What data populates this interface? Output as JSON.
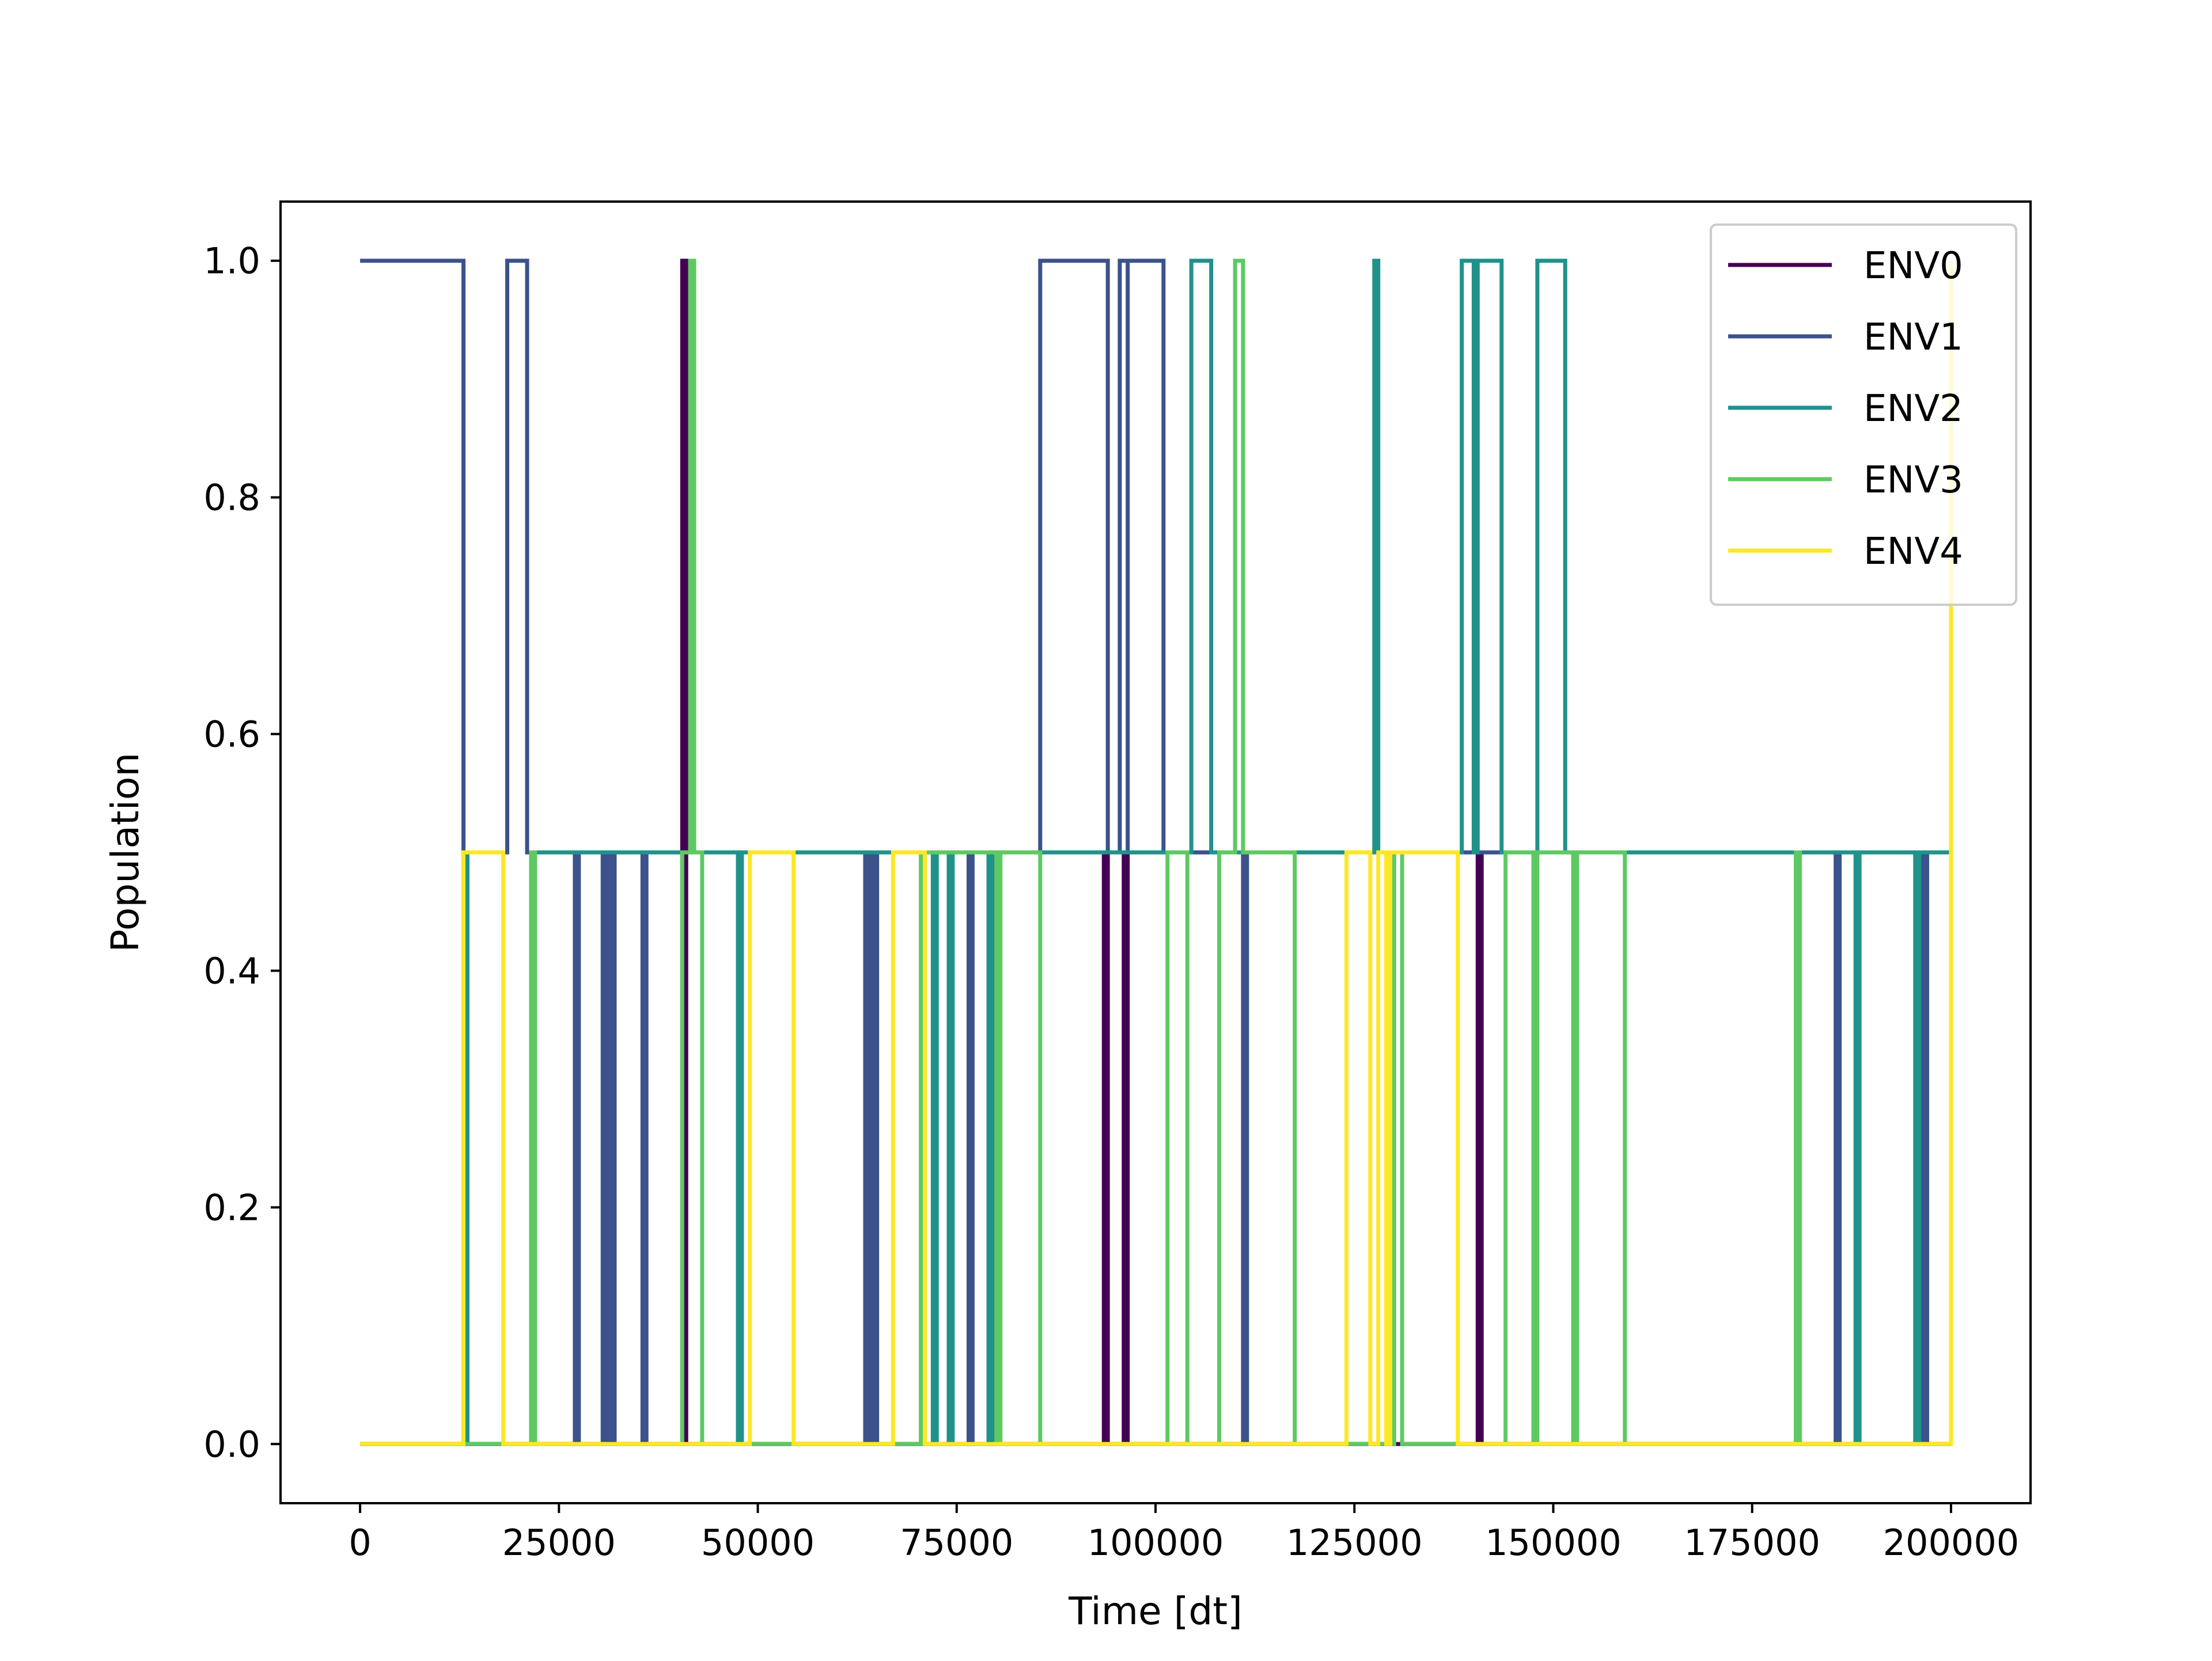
{
  "chart_data": {
    "type": "line",
    "step": true,
    "title": "",
    "xlabel": "Time [dt]",
    "ylabel": "Population",
    "xlim": [
      -10000,
      210000
    ],
    "ylim": [
      -0.05,
      1.05
    ],
    "xticks": [
      0,
      25000,
      50000,
      75000,
      100000,
      125000,
      150000,
      175000,
      200000
    ],
    "xtick_labels": [
      "0",
      "25000",
      "50000",
      "75000",
      "100000",
      "125000",
      "150000",
      "175000",
      "200000"
    ],
    "yticks": [
      0.0,
      0.2,
      0.4,
      0.6,
      0.8,
      1.0
    ],
    "ytick_labels": [
      "0.0",
      "0.2",
      "0.4",
      "0.6",
      "0.8",
      "1.0"
    ],
    "grid": false,
    "legend": {
      "position": "top-right"
    },
    "series": [
      {
        "name": "ENV0",
        "color": "#440154",
        "points": [
          [
            0,
            0
          ],
          [
            40500,
            0
          ],
          [
            40500,
            1.0
          ],
          [
            41000,
            1.0
          ],
          [
            41000,
            0
          ],
          [
            93500,
            0
          ],
          [
            93500,
            0.5
          ],
          [
            94000,
            0.5
          ],
          [
            94000,
            0
          ],
          [
            96000,
            0
          ],
          [
            96000,
            0.5
          ],
          [
            96500,
            0.5
          ],
          [
            96500,
            0
          ],
          [
            140500,
            0
          ],
          [
            140500,
            0.5
          ],
          [
            141000,
            0.5
          ],
          [
            141000,
            0
          ],
          [
            200000,
            0
          ]
        ]
      },
      {
        "name": "ENV1",
        "color": "#3b528b",
        "points": [
          [
            0,
            1.0
          ],
          [
            13000,
            1.0
          ],
          [
            13000,
            0.5
          ],
          [
            18500,
            0.5
          ],
          [
            18500,
            1.0
          ],
          [
            21000,
            1.0
          ],
          [
            21000,
            0.5
          ],
          [
            27000,
            0.5
          ],
          [
            27000,
            0
          ],
          [
            27500,
            0
          ],
          [
            27500,
            0.5
          ],
          [
            30500,
            0.5
          ],
          [
            30500,
            0
          ],
          [
            31000,
            0
          ],
          [
            31000,
            0.5
          ],
          [
            31500,
            0.5
          ],
          [
            31500,
            0
          ],
          [
            32000,
            0
          ],
          [
            32000,
            0.5
          ],
          [
            35500,
            0.5
          ],
          [
            35500,
            0
          ],
          [
            36000,
            0
          ],
          [
            36000,
            0.5
          ],
          [
            63500,
            0.5
          ],
          [
            63500,
            0
          ],
          [
            64000,
            0
          ],
          [
            64000,
            0.5
          ],
          [
            64500,
            0.5
          ],
          [
            64500,
            0
          ],
          [
            65000,
            0
          ],
          [
            65000,
            0.5
          ],
          [
            76500,
            0.5
          ],
          [
            76500,
            0
          ],
          [
            77000,
            0
          ],
          [
            77000,
            0.5
          ],
          [
            85500,
            0.5
          ],
          [
            85500,
            1.0
          ],
          [
            94000,
            1.0
          ],
          [
            94000,
            0.5
          ],
          [
            95500,
            0.5
          ],
          [
            95500,
            1.0
          ],
          [
            96500,
            1.0
          ],
          [
            96500,
            0.5
          ],
          [
            96500,
            0.5
          ],
          [
            96500,
            1.0
          ],
          [
            101000,
            1.0
          ],
          [
            101000,
            0.5
          ],
          [
            111000,
            0.5
          ],
          [
            111000,
            0
          ],
          [
            111500,
            0
          ],
          [
            111500,
            0.5
          ],
          [
            185500,
            0.5
          ],
          [
            185500,
            0
          ],
          [
            186000,
            0
          ],
          [
            186000,
            0.5
          ],
          [
            196500,
            0.5
          ],
          [
            196500,
            0
          ],
          [
            197000,
            0
          ],
          [
            197000,
            0.5
          ],
          [
            200000,
            0.5
          ]
        ]
      },
      {
        "name": "ENV2",
        "color": "#21918c",
        "points": [
          [
            0,
            0
          ],
          [
            13000,
            0
          ],
          [
            13000,
            0.5
          ],
          [
            13500,
            0.5
          ],
          [
            13500,
            0
          ],
          [
            21500,
            0
          ],
          [
            21500,
            0.5
          ],
          [
            47500,
            0.5
          ],
          [
            47500,
            0
          ],
          [
            48000,
            0
          ],
          [
            48000,
            0.5
          ],
          [
            72000,
            0.5
          ],
          [
            72000,
            0
          ],
          [
            72500,
            0
          ],
          [
            72500,
            0.5
          ],
          [
            74000,
            0.5
          ],
          [
            74000,
            0
          ],
          [
            74500,
            0
          ],
          [
            74500,
            0.5
          ],
          [
            79000,
            0.5
          ],
          [
            79000,
            0
          ],
          [
            79500,
            0
          ],
          [
            79500,
            0.5
          ],
          [
            104500,
            0.5
          ],
          [
            104500,
            1.0
          ],
          [
            107000,
            1.0
          ],
          [
            107000,
            0.5
          ],
          [
            127500,
            0.5
          ],
          [
            127500,
            1.0
          ],
          [
            128000,
            1.0
          ],
          [
            128000,
            0.5
          ],
          [
            138500,
            0.5
          ],
          [
            138500,
            1.0
          ],
          [
            140000,
            1.0
          ],
          [
            140000,
            0.5
          ],
          [
            140500,
            0.5
          ],
          [
            140500,
            1.0
          ],
          [
            143500,
            1.0
          ],
          [
            143500,
            0.5
          ],
          [
            148000,
            0.5
          ],
          [
            148000,
            1.0
          ],
          [
            151500,
            1.0
          ],
          [
            151500,
            0.5
          ],
          [
            180500,
            0.5
          ],
          [
            180500,
            0
          ],
          [
            181000,
            0
          ],
          [
            181000,
            0.5
          ],
          [
            188000,
            0.5
          ],
          [
            188000,
            0
          ],
          [
            188500,
            0
          ],
          [
            188500,
            0.5
          ],
          [
            195500,
            0.5
          ],
          [
            195500,
            0
          ],
          [
            196000,
            0
          ],
          [
            196000,
            0.5
          ],
          [
            200000,
            0.5
          ]
        ]
      },
      {
        "name": "ENV3",
        "color": "#5ec962",
        "points": [
          [
            0,
            0
          ],
          [
            21500,
            0
          ],
          [
            21500,
            0.5
          ],
          [
            22000,
            0.5
          ],
          [
            22000,
            0
          ],
          [
            40500,
            0
          ],
          [
            40500,
            0.5
          ],
          [
            41500,
            0.5
          ],
          [
            41500,
            1.0
          ],
          [
            42000,
            1.0
          ],
          [
            42000,
            0.5
          ],
          [
            43000,
            0.5
          ],
          [
            43000,
            0
          ],
          [
            70500,
            0
          ],
          [
            70500,
            0.5
          ],
          [
            80000,
            0.5
          ],
          [
            80000,
            0
          ],
          [
            80500,
            0
          ],
          [
            80500,
            0.5
          ],
          [
            85500,
            0.5
          ],
          [
            85500,
            0
          ],
          [
            101500,
            0
          ],
          [
            101500,
            0.5
          ],
          [
            104000,
            0.5
          ],
          [
            104000,
            0
          ],
          [
            108000,
            0
          ],
          [
            108000,
            0.5
          ],
          [
            110000,
            0.5
          ],
          [
            110000,
            1.0
          ],
          [
            111000,
            1.0
          ],
          [
            111000,
            0.5
          ],
          [
            117500,
            0.5
          ],
          [
            117500,
            0
          ],
          [
            130000,
            0
          ],
          [
            130000,
            0.5
          ],
          [
            131000,
            0.5
          ],
          [
            131000,
            0
          ],
          [
            144000,
            0
          ],
          [
            144000,
            0.5
          ],
          [
            147500,
            0.5
          ],
          [
            147500,
            0
          ],
          [
            148000,
            0
          ],
          [
            148000,
            0.5
          ],
          [
            152500,
            0.5
          ],
          [
            152500,
            0
          ],
          [
            153000,
            0
          ],
          [
            153000,
            0.5
          ],
          [
            159000,
            0.5
          ],
          [
            159000,
            0
          ],
          [
            180500,
            0
          ],
          [
            180500,
            0.5
          ],
          [
            181000,
            0.5
          ],
          [
            181000,
            0
          ],
          [
            200000,
            0
          ]
        ]
      },
      {
        "name": "ENV4",
        "color": "#fde725",
        "points": [
          [
            0,
            0
          ],
          [
            13000,
            0
          ],
          [
            13000,
            0.5
          ],
          [
            18000,
            0.5
          ],
          [
            18000,
            0
          ],
          [
            49000,
            0
          ],
          [
            49000,
            0.5
          ],
          [
            54500,
            0.5
          ],
          [
            54500,
            0
          ],
          [
            67000,
            0
          ],
          [
            67000,
            0.5
          ],
          [
            71000,
            0.5
          ],
          [
            71000,
            0
          ],
          [
            124000,
            0
          ],
          [
            124000,
            0.5
          ],
          [
            127000,
            0.5
          ],
          [
            127000,
            0
          ],
          [
            128000,
            0
          ],
          [
            128000,
            0.5
          ],
          [
            129000,
            0.5
          ],
          [
            129000,
            0
          ],
          [
            129500,
            0
          ],
          [
            129500,
            0.5
          ],
          [
            138000,
            0.5
          ],
          [
            138000,
            0
          ],
          [
            200000,
            0
          ],
          [
            200000,
            1.0
          ]
        ]
      }
    ]
  }
}
